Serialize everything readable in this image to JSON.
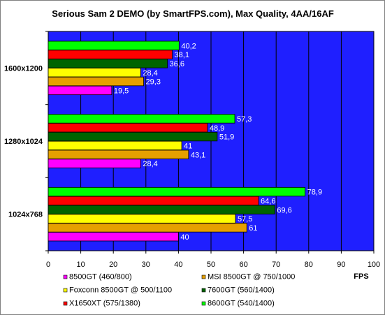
{
  "chart_data": {
    "type": "bar",
    "orientation": "horizontal",
    "title": "Serious Sam 2 DEMO (by SmartFPS.com), Max Quality, 4AA/16AF",
    "xlabel": "FPS",
    "ylabel": "",
    "xlim": [
      0,
      100
    ],
    "x_ticks": [
      0,
      10,
      20,
      30,
      40,
      50,
      60,
      70,
      80,
      90,
      100
    ],
    "grid": true,
    "plot_background": "#1f1fff",
    "legend_position": "bottom",
    "categories": [
      "1600x1200",
      "1280x1024",
      "1024x768"
    ],
    "series": [
      {
        "name": "8500GT (460/800)",
        "color": "#ff00ff",
        "values": [
          19.5,
          28.4,
          40
        ],
        "labels": [
          "19,5",
          "28,4",
          "40"
        ]
      },
      {
        "name": "MSI 8500GT @ 750/1000",
        "color": "#e6a000",
        "values": [
          29.3,
          43.1,
          61
        ],
        "labels": [
          "29,3",
          "43,1",
          "61"
        ]
      },
      {
        "name": "Foxconn 8500GT @ 500/1100",
        "color": "#ffff00",
        "values": [
          28.4,
          41,
          57.5
        ],
        "labels": [
          "28,4",
          "41",
          "57,5"
        ]
      },
      {
        "name": "7600GT (560/1400)",
        "color": "#006400",
        "values": [
          36.6,
          51.9,
          69.6
        ],
        "labels": [
          "36,6",
          "51,9",
          "69,6"
        ]
      },
      {
        "name": "X1650XT (575/1380)",
        "color": "#ff0000",
        "values": [
          38.1,
          48.9,
          64.6
        ],
        "labels": [
          "38,1",
          "48,9",
          "64,6"
        ]
      },
      {
        "name": "8600GT (540/1400)",
        "color": "#00ff00",
        "values": [
          40.2,
          57.3,
          78.9
        ],
        "labels": [
          "40,2",
          "57,3",
          "78,9"
        ]
      }
    ]
  }
}
